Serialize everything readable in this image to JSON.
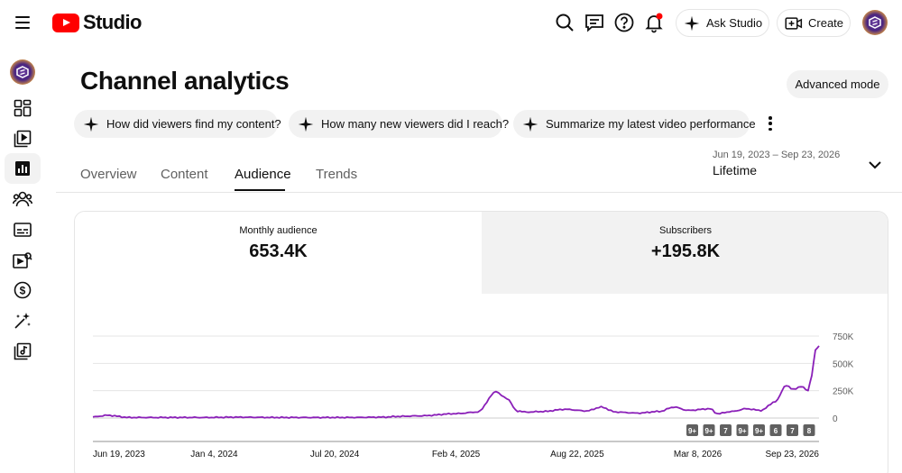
{
  "app": {
    "logo_text": "Studio"
  },
  "topbar": {
    "ask_label": "Ask Studio",
    "create_label": "Create"
  },
  "page": {
    "title": "Channel analytics",
    "advanced_label": "Advanced mode"
  },
  "chips": [
    {
      "label": "How did viewers find my content?"
    },
    {
      "label": "How many new viewers did I reach?"
    },
    {
      "label": "Summarize my latest video performance"
    }
  ],
  "tabs": [
    {
      "label": "Overview"
    },
    {
      "label": "Content"
    },
    {
      "label": "Audience",
      "active": true
    },
    {
      "label": "Trends"
    }
  ],
  "date": {
    "range": "Jun 19, 2023 – Sep 23, 2026",
    "label": "Lifetime"
  },
  "metrics": [
    {
      "label": "Monthly audience",
      "value": "653.4K"
    },
    {
      "label": "Subscribers",
      "value": "+195.8K"
    }
  ],
  "sidebar": {
    "items": [
      "dashboard-icon",
      "content-icon",
      "analytics-icon",
      "community-icon",
      "subtitles-icon",
      "copyright-icon",
      "earn-icon",
      "customization-icon",
      "audio-library-icon"
    ],
    "active": "analytics-icon"
  },
  "colors": {
    "line": "#8a1fb8",
    "accent": "#ff0000"
  },
  "chart_data": {
    "type": "line",
    "series": [
      {
        "x": [
          0,
          0.02,
          0.05,
          0.1,
          0.15,
          0.2,
          0.25,
          0.3,
          0.35,
          0.4,
          0.42,
          0.45,
          0.5,
          0.53,
          0.555,
          0.57,
          0.585,
          0.6,
          0.62,
          0.65,
          0.68,
          0.7,
          0.72,
          0.75,
          0.78,
          0.8,
          0.82,
          0.85,
          0.86,
          0.88,
          0.9,
          0.92,
          0.94,
          0.955,
          0.965,
          0.975,
          0.985,
          0.99,
          0.995,
          1.0
        ],
        "values": [
          10000,
          25000,
          5000,
          5000,
          5000,
          8000,
          5000,
          5000,
          5000,
          8000,
          15000,
          20000,
          40000,
          55000,
          240000,
          180000,
          60000,
          55000,
          60000,
          80000,
          65000,
          100000,
          55000,
          45000,
          60000,
          100000,
          70000,
          85000,
          40000,
          60000,
          85000,
          70000,
          150000,
          300000,
          260000,
          290000,
          250000,
          390000,
          620000,
          660000
        ]
      }
    ],
    "y_ticks": [
      "750K",
      "500K",
      "250K",
      "0"
    ],
    "ylim": [
      0,
      750000
    ],
    "x_ticks": [
      "Jun 19, 2023",
      "Jan 4, 2024",
      "Jul 20, 2024",
      "Feb 4, 2025",
      "Aug 22, 2025",
      "Mar 8, 2026",
      "Sep 23, 2026"
    ],
    "markers": [
      "9+",
      "9+",
      "7",
      "9+",
      "9+",
      "6",
      "7",
      "8"
    ]
  }
}
